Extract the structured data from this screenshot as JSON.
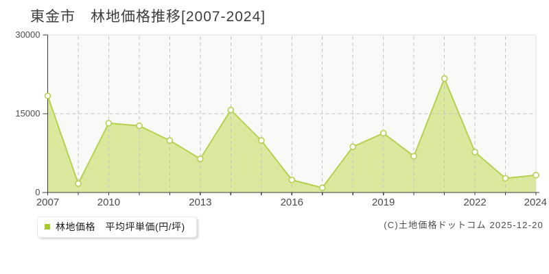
{
  "ui": {
    "title": "東金市　林地価格推移[2007-2024]",
    "legend": {
      "label": "林地価格　平均坪単価(円/坪)"
    },
    "copyright": "(C)土地価格ドットコム 2025-12-20"
  },
  "chart_data": {
    "type": "area",
    "title": "東金市　林地価格推移[2007-2024]",
    "series_name": "林地価格 平均坪単価(円/坪)",
    "years": [
      "2007",
      "2009",
      "2010",
      "2011",
      "2012",
      "2013",
      "2014",
      "2015",
      "2016",
      "2017",
      "2018",
      "2019",
      "2020",
      "2021",
      "2022",
      "2023",
      "2024"
    ],
    "values": [
      18400,
      1700,
      13200,
      12700,
      9900,
      6400,
      15700,
      9900,
      2400,
      900,
      8700,
      11300,
      6900,
      21700,
      7700,
      2700,
      3300
    ],
    "ylim": [
      0,
      30000
    ],
    "y_ticks": [
      0,
      15000,
      30000
    ],
    "y_tick_labels": [
      "0",
      "15000",
      "30000"
    ],
    "x_tick_labels": [
      "2007",
      "2010",
      "2013",
      "2016",
      "2019",
      "2022",
      "2024"
    ],
    "x_tick_indices": [
      0,
      2,
      5,
      8,
      11,
      14,
      16
    ],
    "grid": "dashed",
    "legend_position": "bottom-left",
    "colors": {
      "line": "#b3d14f",
      "fill": "#dbe99f",
      "marker_fill": "#ffffff",
      "legend_square": "#a5cb2d",
      "grid": "#c4c4c4",
      "axis": "#3a3a3a",
      "plot_bg": "#f9f9f7",
      "tick_text": "#4b4b4b"
    }
  }
}
